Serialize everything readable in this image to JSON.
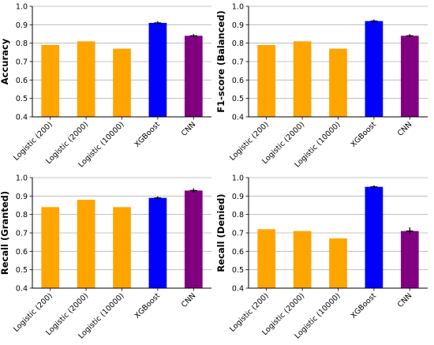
{
  "colors": {
    "logistic": "#FFA500",
    "xgboost": "#0000FF",
    "cnn": "#800080",
    "grid": "#b0b0b0",
    "axis": "#000000",
    "errorbar": "#000000"
  },
  "chart_data": [
    {
      "type": "bar",
      "title": "",
      "xlabel": "",
      "ylabel": "Accuracy",
      "ylim": [
        0.4,
        1.0
      ],
      "yticks": [
        "0.4",
        "0.5",
        "0.6",
        "0.7",
        "0.8",
        "0.9",
        "1.0"
      ],
      "grid": true,
      "categories": [
        "Logistic (200)",
        "Logistic (2000)",
        "Logistic (10000)",
        "XGBoost",
        "CNN"
      ],
      "values": [
        0.79,
        0.81,
        0.77,
        0.91,
        0.84
      ],
      "errors": [
        0,
        0,
        0,
        0.005,
        0.005
      ],
      "bar_colors": [
        "#FFA500",
        "#FFA500",
        "#FFA500",
        "#0000FF",
        "#800080"
      ]
    },
    {
      "type": "bar",
      "title": "",
      "xlabel": "",
      "ylabel": "F1-score (Balanced)",
      "ylim": [
        0.4,
        1.0
      ],
      "yticks": [
        "0.4",
        "0.5",
        "0.6",
        "0.7",
        "0.8",
        "0.9",
        "1.0"
      ],
      "grid": true,
      "categories": [
        "Logistic (200)",
        "Logistic (2000)",
        "Logistic (10000)",
        "XGBoost",
        "CNN"
      ],
      "values": [
        0.79,
        0.81,
        0.77,
        0.92,
        0.84
      ],
      "errors": [
        0,
        0,
        0,
        0.003,
        0.005
      ],
      "bar_colors": [
        "#FFA500",
        "#FFA500",
        "#FFA500",
        "#0000FF",
        "#800080"
      ]
    },
    {
      "type": "bar",
      "title": "",
      "xlabel": "",
      "ylabel": "Recall (Granted)",
      "ylim": [
        0.4,
        1.0
      ],
      "yticks": [
        "0.4",
        "0.5",
        "0.6",
        "0.7",
        "0.8",
        "0.9",
        "1.0"
      ],
      "grid": true,
      "categories": [
        "Logistic (200)",
        "Logistic (2000)",
        "Logistic (10000)",
        "XGBoost",
        "CNN"
      ],
      "values": [
        0.84,
        0.88,
        0.84,
        0.89,
        0.93
      ],
      "errors": [
        0,
        0,
        0,
        0.005,
        0.012
      ],
      "bar_colors": [
        "#FFA500",
        "#FFA500",
        "#FFA500",
        "#0000FF",
        "#800080"
      ]
    },
    {
      "type": "bar",
      "title": "",
      "xlabel": "",
      "ylabel": "Recall (Denied)",
      "ylim": [
        0.4,
        1.0
      ],
      "yticks": [
        "0.4",
        "0.5",
        "0.6",
        "0.7",
        "0.8",
        "0.9",
        "1.0"
      ],
      "grid": true,
      "categories": [
        "Logistic (200)",
        "Logistic (2000)",
        "Logistic (10000)",
        "XGBoost",
        "CNN"
      ],
      "values": [
        0.72,
        0.71,
        0.67,
        0.95,
        0.71
      ],
      "errors": [
        0,
        0,
        0,
        0.005,
        0.02
      ],
      "bar_colors": [
        "#FFA500",
        "#FFA500",
        "#FFA500",
        "#0000FF",
        "#800080"
      ]
    }
  ]
}
